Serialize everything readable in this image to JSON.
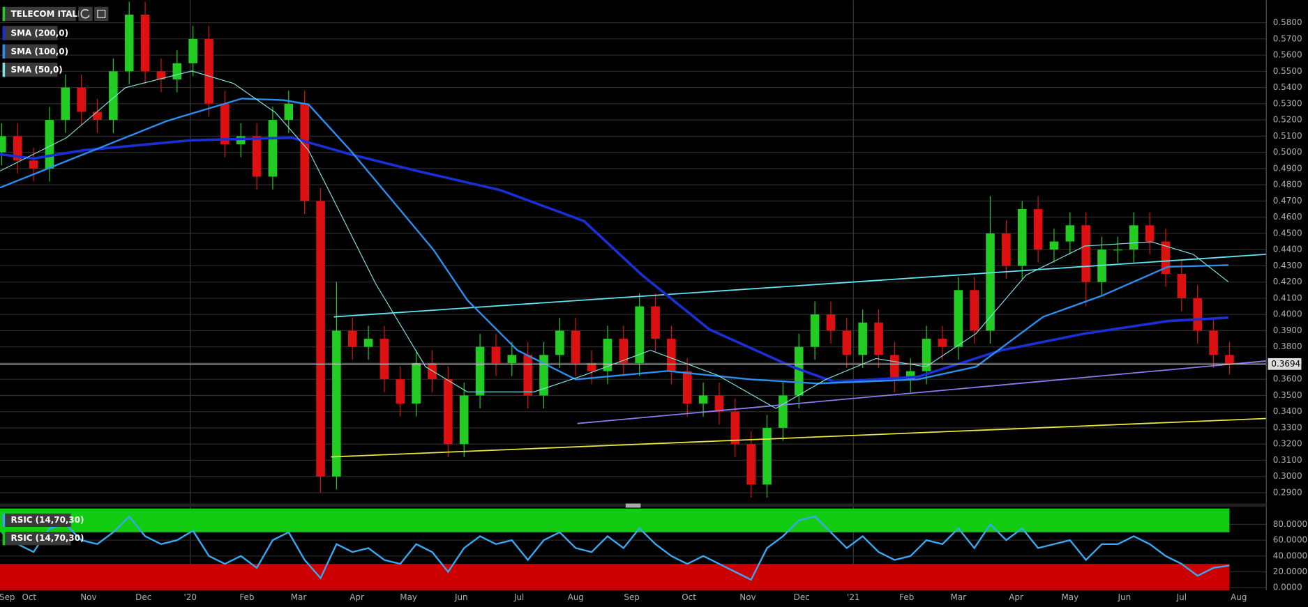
{
  "chart_data": [
    {
      "type": "candlestick",
      "title": "TELECOM ITALIA",
      "up_color": "#22cc22",
      "down_color": "#dd1111",
      "x": [
        0.5,
        0.79,
        1.08,
        1.37,
        1.66,
        1.95,
        2.24,
        2.53,
        2.82,
        3.11,
        3.4,
        3.69,
        3.98,
        4.27,
        4.56,
        4.85,
        5.14,
        5.43,
        5.72,
        6.01,
        6.3,
        6.59,
        6.88,
        7.17,
        7.46,
        7.75,
        8.04,
        8.33,
        8.62,
        8.91,
        9.2,
        9.49,
        9.78,
        10.07,
        10.36,
        10.65,
        10.94,
        11.23,
        11.52,
        11.81,
        12.1,
        12.39,
        12.68,
        12.97,
        13.26,
        13.55,
        13.84,
        14.13,
        14.42,
        14.71,
        15,
        15.29,
        15.58,
        15.87,
        16.16,
        16.45,
        16.74,
        17.03,
        17.32,
        17.61,
        17.9,
        18.19,
        18.48,
        18.77,
        19.06,
        19.35,
        19.64,
        19.93,
        20.22,
        20.51,
        20.8,
        21.09,
        21.38,
        21.67,
        21.96,
        22.25,
        22.54,
        22.83
      ],
      "open": [
        0.5,
        0.51,
        0.495,
        0.49,
        0.52,
        0.54,
        0.525,
        0.52,
        0.55,
        0.585,
        0.55,
        0.545,
        0.555,
        0.57,
        0.53,
        0.505,
        0.51,
        0.485,
        0.52,
        0.53,
        0.47,
        0.3,
        0.39,
        0.38,
        0.385,
        0.36,
        0.345,
        0.37,
        0.36,
        0.32,
        0.35,
        0.38,
        0.37,
        0.375,
        0.35,
        0.375,
        0.39,
        0.37,
        0.365,
        0.385,
        0.37,
        0.405,
        0.385,
        0.365,
        0.345,
        0.35,
        0.34,
        0.32,
        0.295,
        0.33,
        0.35,
        0.38,
        0.4,
        0.39,
        0.375,
        0.395,
        0.375,
        0.36,
        0.365,
        0.385,
        0.38,
        0.415,
        0.39,
        0.45,
        0.43,
        0.465,
        0.44,
        0.445,
        0.455,
        0.42,
        0.44,
        0.44,
        0.455,
        0.445,
        0.425,
        0.41,
        0.39,
        0.375
      ],
      "high": [
        0.518,
        0.518,
        0.503,
        0.528,
        0.548,
        0.548,
        0.533,
        0.558,
        0.593,
        0.593,
        0.558,
        0.563,
        0.578,
        0.578,
        0.538,
        0.518,
        0.518,
        0.528,
        0.538,
        0.538,
        0.478,
        0.42,
        0.398,
        0.393,
        0.393,
        0.368,
        0.378,
        0.378,
        0.368,
        0.358,
        0.388,
        0.388,
        0.383,
        0.383,
        0.383,
        0.398,
        0.398,
        0.378,
        0.393,
        0.393,
        0.413,
        0.413,
        0.393,
        0.373,
        0.358,
        0.358,
        0.348,
        0.328,
        0.338,
        0.358,
        0.388,
        0.408,
        0.408,
        0.398,
        0.403,
        0.403,
        0.383,
        0.373,
        0.393,
        0.393,
        0.423,
        0.423,
        0.473,
        0.458,
        0.47,
        0.473,
        0.453,
        0.463,
        0.463,
        0.448,
        0.448,
        0.463,
        0.463,
        0.453,
        0.433,
        0.418,
        0.398,
        0.383
      ],
      "low": [
        0.492,
        0.487,
        0.482,
        0.482,
        0.512,
        0.517,
        0.512,
        0.512,
        0.542,
        0.542,
        0.537,
        0.537,
        0.547,
        0.522,
        0.497,
        0.497,
        0.477,
        0.477,
        0.512,
        0.462,
        0.29,
        0.292,
        0.372,
        0.372,
        0.352,
        0.337,
        0.337,
        0.352,
        0.312,
        0.312,
        0.342,
        0.362,
        0.362,
        0.342,
        0.342,
        0.367,
        0.362,
        0.357,
        0.357,
        0.362,
        0.362,
        0.377,
        0.357,
        0.337,
        0.337,
        0.332,
        0.312,
        0.287,
        0.287,
        0.322,
        0.342,
        0.372,
        0.382,
        0.367,
        0.367,
        0.367,
        0.352,
        0.352,
        0.357,
        0.372,
        0.372,
        0.382,
        0.382,
        0.422,
        0.422,
        0.432,
        0.432,
        0.437,
        0.405,
        0.412,
        0.432,
        0.432,
        0.437,
        0.417,
        0.402,
        0.382,
        0.367,
        0.363
      ],
      "close": [
        0.51,
        0.495,
        0.49,
        0.52,
        0.54,
        0.525,
        0.52,
        0.55,
        0.585,
        0.55,
        0.545,
        0.555,
        0.57,
        0.53,
        0.505,
        0.51,
        0.485,
        0.52,
        0.53,
        0.47,
        0.3,
        0.39,
        0.38,
        0.385,
        0.36,
        0.345,
        0.37,
        0.36,
        0.32,
        0.35,
        0.38,
        0.37,
        0.375,
        0.35,
        0.375,
        0.39,
        0.37,
        0.365,
        0.385,
        0.37,
        0.405,
        0.385,
        0.365,
        0.345,
        0.35,
        0.34,
        0.32,
        0.295,
        0.33,
        0.35,
        0.38,
        0.4,
        0.39,
        0.375,
        0.395,
        0.375,
        0.36,
        0.365,
        0.385,
        0.38,
        0.415,
        0.39,
        0.45,
        0.43,
        0.465,
        0.44,
        0.445,
        0.455,
        0.42,
        0.44,
        0.44,
        0.455,
        0.445,
        0.425,
        0.41,
        0.39,
        0.375,
        0.369
      ],
      "series": [
        {
          "name": "SMA (200,0)",
          "color": "#1a2fd6",
          "width": 3,
          "x": [
            0.47,
            1.08,
            1.99,
            3.96,
            5.78,
            6.84,
            8.06,
            9.57,
            11.09,
            12.15,
            13.37,
            14.88,
            15.64,
            17.16,
            18.68,
            20.2,
            21.71,
            22.81
          ],
          "values": [
            0.4988,
            0.4962,
            0.5013,
            0.5075,
            0.509,
            0.4988,
            0.4885,
            0.4767,
            0.4576,
            0.4242,
            0.3908,
            0.3677,
            0.3584,
            0.3615,
            0.3779,
            0.3882,
            0.3959,
            0.398
          ]
        },
        {
          "name": "SMA (100,0)",
          "color": "#2a8ff0",
          "width": 2,
          "x": [
            0.47,
            1.99,
            3.5,
            4.87,
            5.63,
            6.08,
            6.84,
            7.6,
            8.36,
            8.97,
            9.88,
            10.94,
            12.61,
            14.13,
            15.34,
            17.16,
            18.22,
            19.44,
            20.5,
            21.71,
            22.81
          ],
          "values": [
            0.4782,
            0.4988,
            0.5193,
            0.5332,
            0.5322,
            0.5296,
            0.5013,
            0.4705,
            0.4396,
            0.4088,
            0.3779,
            0.3599,
            0.3651,
            0.3599,
            0.3574,
            0.3599,
            0.3677,
            0.3985,
            0.4114,
            0.4294,
            0.4304
          ]
        },
        {
          "name": "SMA (50,0)",
          "color": "#7fe0e0",
          "width": 1,
          "x": [
            0.47,
            1.68,
            2.75,
            3.96,
            4.72,
            5.48,
            6.08,
            6.54,
            7.3,
            8.21,
            8.97,
            10.18,
            11.09,
            12.3,
            13.52,
            14.58,
            15.49,
            16.4,
            17.31,
            18.22,
            19.13,
            20.2,
            21.41,
            22.17,
            22.81
          ],
          "values": [
            0.4885,
            0.509,
            0.5399,
            0.5502,
            0.5425,
            0.5245,
            0.5013,
            0.4705,
            0.4191,
            0.3677,
            0.3522,
            0.3522,
            0.3625,
            0.3779,
            0.3625,
            0.342,
            0.3599,
            0.3728,
            0.3677,
            0.3882,
            0.4242,
            0.4422,
            0.4448,
            0.4371,
            0.4201
          ]
        }
      ],
      "trendlines": [
        {
          "color": "#5fe6f0",
          "x": [
            6.54,
            23.5
          ],
          "values": [
            0.3985,
            0.4371
          ]
        },
        {
          "color": "#8a7cf0",
          "x": [
            10.97,
            23.5
          ],
          "values": [
            0.3327,
            0.3713
          ]
        },
        {
          "color": "#e8e840",
          "x": [
            6.49,
            23.5
          ],
          "values": [
            0.3121,
            0.3358
          ]
        }
      ],
      "last_price": 0.3694,
      "xlim": [
        0.47,
        23.5
      ],
      "xticks": [
        {
          "value": 0.6,
          "label": "Sep"
        },
        {
          "value": 1,
          "label": "Oct"
        },
        {
          "value": 2.08,
          "label": "Nov"
        },
        {
          "value": 3.08,
          "label": "Dec"
        },
        {
          "value": 3.93,
          "label": "'20"
        },
        {
          "value": 4.96,
          "label": "Feb"
        },
        {
          "value": 5.9,
          "label": "Mar"
        },
        {
          "value": 6.96,
          "label": "Apr"
        },
        {
          "value": 7.9,
          "label": "May"
        },
        {
          "value": 8.86,
          "label": "Jun"
        },
        {
          "value": 9.91,
          "label": "Jul"
        },
        {
          "value": 10.94,
          "label": "Aug"
        },
        {
          "value": 11.96,
          "label": "Sep"
        },
        {
          "value": 13.0,
          "label": "Oct"
        },
        {
          "value": 14.07,
          "label": "Nov"
        },
        {
          "value": 15.05,
          "label": "Dec"
        },
        {
          "value": 15.99,
          "label": "'21"
        },
        {
          "value": 16.96,
          "label": "Feb"
        },
        {
          "value": 17.9,
          "label": "Mar"
        },
        {
          "value": 18.95,
          "label": "Apr"
        },
        {
          "value": 19.93,
          "label": "May"
        },
        {
          "value": 20.92,
          "label": "Jun"
        },
        {
          "value": 21.96,
          "label": "Jul"
        },
        {
          "value": 23.0,
          "label": "Aug"
        }
      ],
      "ylim": [
        0.2854,
        0.5939
      ],
      "yticks": [
        {
          "value": 0.29,
          "label": "0.2900"
        },
        {
          "value": 0.3,
          "label": "0.3000"
        },
        {
          "value": 0.31,
          "label": "0.3100"
        },
        {
          "value": 0.32,
          "label": "0.3200"
        },
        {
          "value": 0.33,
          "label": "0.3300"
        },
        {
          "value": 0.34,
          "label": "0.3400"
        },
        {
          "value": 0.35,
          "label": "0.3500"
        },
        {
          "value": 0.36,
          "label": "0.3600"
        },
        {
          "value": 0.37,
          "label": "0.3700"
        },
        {
          "value": 0.38,
          "label": "0.3800"
        },
        {
          "value": 0.39,
          "label": "0.3900"
        },
        {
          "value": 0.4,
          "label": "0.4000"
        },
        {
          "value": 0.41,
          "label": "0.4100"
        },
        {
          "value": 0.42,
          "label": "0.4200"
        },
        {
          "value": 0.43,
          "label": "0.4300"
        },
        {
          "value": 0.44,
          "label": "0.4400"
        },
        {
          "value": 0.45,
          "label": "0.4500"
        },
        {
          "value": 0.46,
          "label": "0.4600"
        },
        {
          "value": 0.47,
          "label": "0.4700"
        },
        {
          "value": 0.48,
          "label": "0.4800"
        },
        {
          "value": 0.49,
          "label": "0.4900"
        },
        {
          "value": 0.5,
          "label": "0.5000"
        },
        {
          "value": 0.51,
          "label": "0.5100"
        },
        {
          "value": 0.52,
          "label": "0.5200"
        },
        {
          "value": 0.53,
          "label": "0.5300"
        },
        {
          "value": 0.54,
          "label": "0.5400"
        },
        {
          "value": 0.55,
          "label": "0.5500"
        },
        {
          "value": 0.56,
          "label": "0.5600"
        },
        {
          "value": 0.57,
          "label": "0.5700"
        },
        {
          "value": 0.58,
          "label": "0.5800"
        }
      ],
      "grid": true
    },
    {
      "type": "line",
      "labels": [
        "RSIC (14,70,30)",
        "RSIC (14,70,30)"
      ],
      "color": "#3aa8f0",
      "overbought": 70,
      "oversold": 30,
      "overbought_color": "#11cc11",
      "oversold_color": "#cc0000",
      "x": [
        0.5,
        0.79,
        1.08,
        1.37,
        1.66,
        1.95,
        2.24,
        2.53,
        2.82,
        3.11,
        3.4,
        3.69,
        3.98,
        4.27,
        4.56,
        4.85,
        5.14,
        5.43,
        5.72,
        6.01,
        6.3,
        6.59,
        6.88,
        7.17,
        7.46,
        7.75,
        8.04,
        8.33,
        8.62,
        8.91,
        9.2,
        9.49,
        9.78,
        10.07,
        10.36,
        10.65,
        10.94,
        11.23,
        11.52,
        11.81,
        12.1,
        12.39,
        12.68,
        12.97,
        13.26,
        13.55,
        13.84,
        14.13,
        14.42,
        14.71,
        15,
        15.29,
        15.58,
        15.87,
        16.16,
        16.45,
        16.74,
        17.03,
        17.32,
        17.61,
        17.9,
        18.19,
        18.48,
        18.77,
        19.06,
        19.35,
        19.64,
        19.93,
        20.22,
        20.51,
        20.8,
        21.09,
        21.38,
        21.67,
        21.96,
        22.25,
        22.54,
        22.83
      ],
      "values": [
        70,
        55,
        45,
        75,
        80,
        60,
        55,
        70,
        90,
        65,
        55,
        60,
        72,
        40,
        30,
        40,
        25,
        60,
        70,
        35,
        12,
        55,
        45,
        50,
        35,
        30,
        55,
        45,
        20,
        50,
        65,
        55,
        60,
        35,
        60,
        70,
        50,
        45,
        65,
        50,
        75,
        55,
        40,
        30,
        40,
        30,
        20,
        10,
        50,
        65,
        85,
        90,
        70,
        50,
        65,
        45,
        35,
        40,
        60,
        55,
        75,
        50,
        80,
        60,
        75,
        50,
        55,
        60,
        35,
        55,
        55,
        65,
        55,
        40,
        30,
        15,
        25,
        28
      ],
      "xlim": [
        0.47,
        23.5
      ],
      "ylim": [
        -3.2,
        100
      ],
      "yticks": [
        {
          "value": 0,
          "label": "0.0000"
        },
        {
          "value": 20,
          "label": "20.0000"
        },
        {
          "value": 40,
          "label": "40.0000"
        },
        {
          "value": 60,
          "label": "60.0000"
        },
        {
          "value": 80,
          "label": "80.0000"
        }
      ]
    }
  ]
}
